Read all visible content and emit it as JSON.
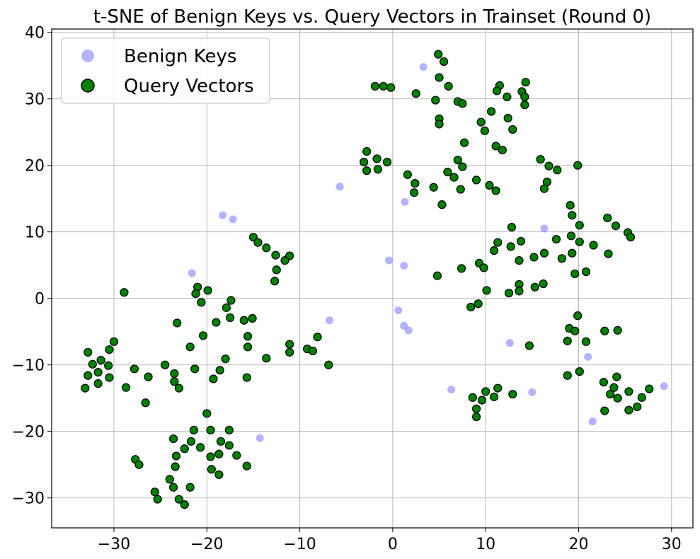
{
  "chart_data": {
    "type": "scatter",
    "title": "t-SNE of Benign Keys vs. Query Vectors in Trainset (Round 0)",
    "xlim": [
      -36.7,
      32.3
    ],
    "ylim": [
      -34.5,
      40.5
    ],
    "xticks": [
      -30,
      -20,
      -10,
      0,
      10,
      20,
      30
    ],
    "yticks": [
      -30,
      -20,
      -10,
      0,
      10,
      20,
      30,
      40
    ],
    "xtick_labels": [
      "−30",
      "−20",
      "−10",
      "0",
      "10",
      "20",
      "30"
    ],
    "ytick_labels": [
      "−30",
      "−20",
      "−10",
      "0",
      "10",
      "20",
      "30",
      "40"
    ],
    "grid": true,
    "legend_position": "upper-left",
    "series": [
      {
        "name": "Benign Keys",
        "color": "#8080ff",
        "points": [
          [
            3.3,
            34.8
          ],
          [
            -5.7,
            16.8
          ],
          [
            1.3,
            14.5
          ],
          [
            -18.3,
            12.5
          ],
          [
            -17.2,
            11.9
          ],
          [
            16.3,
            10.5
          ],
          [
            -0.4,
            5.7
          ],
          [
            1.2,
            4.9
          ],
          [
            -21.6,
            3.8
          ],
          [
            0.6,
            -1.8
          ],
          [
            1.2,
            -4.1
          ],
          [
            1.7,
            -4.8
          ],
          [
            -6.8,
            -3.3
          ],
          [
            12.6,
            -6.7
          ],
          [
            21.0,
            -8.8
          ],
          [
            6.3,
            -13.7
          ],
          [
            15.0,
            -14.1
          ],
          [
            29.2,
            -13.2
          ],
          [
            21.5,
            -18.5
          ],
          [
            -14.3,
            -21.0
          ]
        ]
      },
      {
        "name": "Query Vectors",
        "color": "#008000",
        "points": [
          [
            4.9,
            36.7
          ],
          [
            5.5,
            35.6
          ],
          [
            5.0,
            33.2
          ],
          [
            6.0,
            31.9
          ],
          [
            2.5,
            30.8
          ],
          [
            -1.9,
            31.9
          ],
          [
            -1.0,
            31.9
          ],
          [
            -0.2,
            31.7
          ],
          [
            4.6,
            29.8
          ],
          [
            7.0,
            29.6
          ],
          [
            7.5,
            29.3
          ],
          [
            11.5,
            32.0
          ],
          [
            11.2,
            31.2
          ],
          [
            12.3,
            30.3
          ],
          [
            13.9,
            31.1
          ],
          [
            14.3,
            32.5
          ],
          [
            14.2,
            30.3
          ],
          [
            14.2,
            29.1
          ],
          [
            10.6,
            28.1
          ],
          [
            5.0,
            27.0
          ],
          [
            5.0,
            26.2
          ],
          [
            9.5,
            26.5
          ],
          [
            9.9,
            25.2
          ],
          [
            12.4,
            27.1
          ],
          [
            12.9,
            25.4
          ],
          [
            7.7,
            23.4
          ],
          [
            11.1,
            22.9
          ],
          [
            11.8,
            22.3
          ],
          [
            -2.8,
            22.1
          ],
          [
            -1.7,
            21.0
          ],
          [
            -3.1,
            20.5
          ],
          [
            -0.6,
            20.5
          ],
          [
            -1.6,
            19.4
          ],
          [
            -2.8,
            19.2
          ],
          [
            7.0,
            20.8
          ],
          [
            7.5,
            19.8
          ],
          [
            5.9,
            19.0
          ],
          [
            6.6,
            18.2
          ],
          [
            1.6,
            18.6
          ],
          [
            2.4,
            17.3
          ],
          [
            2.3,
            15.9
          ],
          [
            4.4,
            16.7
          ],
          [
            7.3,
            16.4
          ],
          [
            9.0,
            17.8
          ],
          [
            10.4,
            17.0
          ],
          [
            11.1,
            16.2
          ],
          [
            5.3,
            14.1
          ],
          [
            15.9,
            20.9
          ],
          [
            16.8,
            19.9
          ],
          [
            17.7,
            19.3
          ],
          [
            19.9,
            20.0
          ],
          [
            16.6,
            17.5
          ],
          [
            16.3,
            16.5
          ],
          [
            19.1,
            14.0
          ],
          [
            19.3,
            12.5
          ],
          [
            20.1,
            11.0
          ],
          [
            23.1,
            12.1
          ],
          [
            24.0,
            10.9
          ],
          [
            25.3,
            9.9
          ],
          [
            25.6,
            9.2
          ],
          [
            19.2,
            9.4
          ],
          [
            20.1,
            8.5
          ],
          [
            21.6,
            8.0
          ],
          [
            23.2,
            6.7
          ],
          [
            19.3,
            6.8
          ],
          [
            18.2,
            6.0
          ],
          [
            17.6,
            8.9
          ],
          [
            16.3,
            6.8
          ],
          [
            15.2,
            6.2
          ],
          [
            12.8,
            10.7
          ],
          [
            11.3,
            8.4
          ],
          [
            12.7,
            7.8
          ],
          [
            13.8,
            8.6
          ],
          [
            10.9,
            7.2
          ],
          [
            13.6,
            5.7
          ],
          [
            9.3,
            5.3
          ],
          [
            9.8,
            4.6
          ],
          [
            7.4,
            4.5
          ],
          [
            4.8,
            3.4
          ],
          [
            19.6,
            3.7
          ],
          [
            20.8,
            4.0
          ],
          [
            13.6,
            2.1
          ],
          [
            16.2,
            2.2
          ],
          [
            15.3,
            1.7
          ],
          [
            10.1,
            1.2
          ],
          [
            12.5,
            0.8
          ],
          [
            13.6,
            1.1
          ],
          [
            9.2,
            -0.8
          ],
          [
            8.4,
            -1.3
          ],
          [
            19.9,
            -2.6
          ],
          [
            19.0,
            -4.5
          ],
          [
            19.6,
            -4.9
          ],
          [
            22.8,
            -4.9
          ],
          [
            24.2,
            -4.8
          ],
          [
            14.7,
            -7.1
          ],
          [
            18.8,
            -6.4
          ],
          [
            20.8,
            -6.5
          ],
          [
            18.8,
            -11.6
          ],
          [
            20.1,
            -11.0
          ],
          [
            22.7,
            -12.6
          ],
          [
            24.1,
            -11.8
          ],
          [
            10.0,
            -14.0
          ],
          [
            11.3,
            -13.5
          ],
          [
            12.9,
            -14.4
          ],
          [
            10.9,
            -14.8
          ],
          [
            8.6,
            -14.9
          ],
          [
            9.6,
            -15.3
          ],
          [
            9.0,
            -16.6
          ],
          [
            9.0,
            -17.8
          ],
          [
            23.4,
            -14.4
          ],
          [
            23.8,
            -13.4
          ],
          [
            24.2,
            -15.0
          ],
          [
            25.4,
            -14.0
          ],
          [
            26.8,
            -14.9
          ],
          [
            27.6,
            -13.6
          ],
          [
            26.3,
            -16.3
          ],
          [
            25.4,
            -16.8
          ],
          [
            22.8,
            -16.9
          ],
          [
            -15.0,
            9.2
          ],
          [
            -14.5,
            8.4
          ],
          [
            -13.6,
            7.6
          ],
          [
            -12.6,
            6.5
          ],
          [
            -11.1,
            6.4
          ],
          [
            -11.6,
            5.7
          ],
          [
            -12.5,
            4.3
          ],
          [
            -12.7,
            2.6
          ],
          [
            -21.0,
            1.7
          ],
          [
            -21.2,
            0.7
          ],
          [
            -19.9,
            1.2
          ],
          [
            -20.6,
            -0.6
          ],
          [
            -28.9,
            0.9
          ],
          [
            -17.4,
            -0.3
          ],
          [
            -17.9,
            -1.4
          ],
          [
            -17.5,
            -2.9
          ],
          [
            -16.0,
            -3.3
          ],
          [
            -15.1,
            -3.0
          ],
          [
            -19.0,
            -3.6
          ],
          [
            -23.2,
            -3.7
          ],
          [
            -30.0,
            -6.5
          ],
          [
            -20.4,
            -5.6
          ],
          [
            -21.8,
            -7.3
          ],
          [
            -15.6,
            -5.7
          ],
          [
            -15.6,
            -7.3
          ],
          [
            -11.1,
            -6.9
          ],
          [
            -11.1,
            -8.1
          ],
          [
            -13.6,
            -9.0
          ],
          [
            -8.1,
            -5.8
          ],
          [
            -9.2,
            -7.6
          ],
          [
            -8.6,
            -7.9
          ],
          [
            -6.9,
            -10.0
          ],
          [
            -18.0,
            -9.1
          ],
          [
            -18.6,
            -10.8
          ],
          [
            -19.3,
            -12.1
          ],
          [
            -21.3,
            -10.6
          ],
          [
            -15.7,
            -11.9
          ],
          [
            -24.5,
            -10.0
          ],
          [
            -23.5,
            -11.3
          ],
          [
            -23.5,
            -12.5
          ],
          [
            -23.0,
            -13.5
          ],
          [
            -26.3,
            -11.8
          ],
          [
            -27.8,
            -10.6
          ],
          [
            -28.7,
            -13.4
          ],
          [
            -30.5,
            -7.7
          ],
          [
            -30.6,
            -10.1
          ],
          [
            -30.5,
            -11.9
          ],
          [
            -31.4,
            -9.3
          ],
          [
            -31.7,
            -11.1
          ],
          [
            -31.7,
            -12.8
          ],
          [
            -32.3,
            -9.9
          ],
          [
            -32.8,
            -8.1
          ],
          [
            -32.8,
            -11.6
          ],
          [
            -33.1,
            -13.5
          ],
          [
            -26.6,
            -15.7
          ],
          [
            -20.0,
            -17.3
          ],
          [
            -21.4,
            -19.8
          ],
          [
            -19.6,
            -19.8
          ],
          [
            -17.6,
            -19.8
          ],
          [
            -23.6,
            -21.1
          ],
          [
            -21.7,
            -21.5
          ],
          [
            -18.5,
            -21.5
          ],
          [
            -17.6,
            -22.1
          ],
          [
            -20.7,
            -22.4
          ],
          [
            -22.4,
            -22.6
          ],
          [
            -23.3,
            -23.7
          ],
          [
            -19.6,
            -23.8
          ],
          [
            -18.7,
            -23.4
          ],
          [
            -16.8,
            -23.6
          ],
          [
            -27.7,
            -24.2
          ],
          [
            -27.3,
            -25.0
          ],
          [
            -23.4,
            -25.3
          ],
          [
            -19.5,
            -25.7
          ],
          [
            -18.7,
            -26.5
          ],
          [
            -15.7,
            -25.2
          ],
          [
            -24.0,
            -27.2
          ],
          [
            -21.8,
            -28.4
          ],
          [
            -23.6,
            -28.4
          ],
          [
            -25.6,
            -29.1
          ],
          [
            -25.3,
            -30.2
          ],
          [
            -23.0,
            -30.2
          ],
          [
            -22.4,
            -31.0
          ]
        ]
      }
    ]
  }
}
